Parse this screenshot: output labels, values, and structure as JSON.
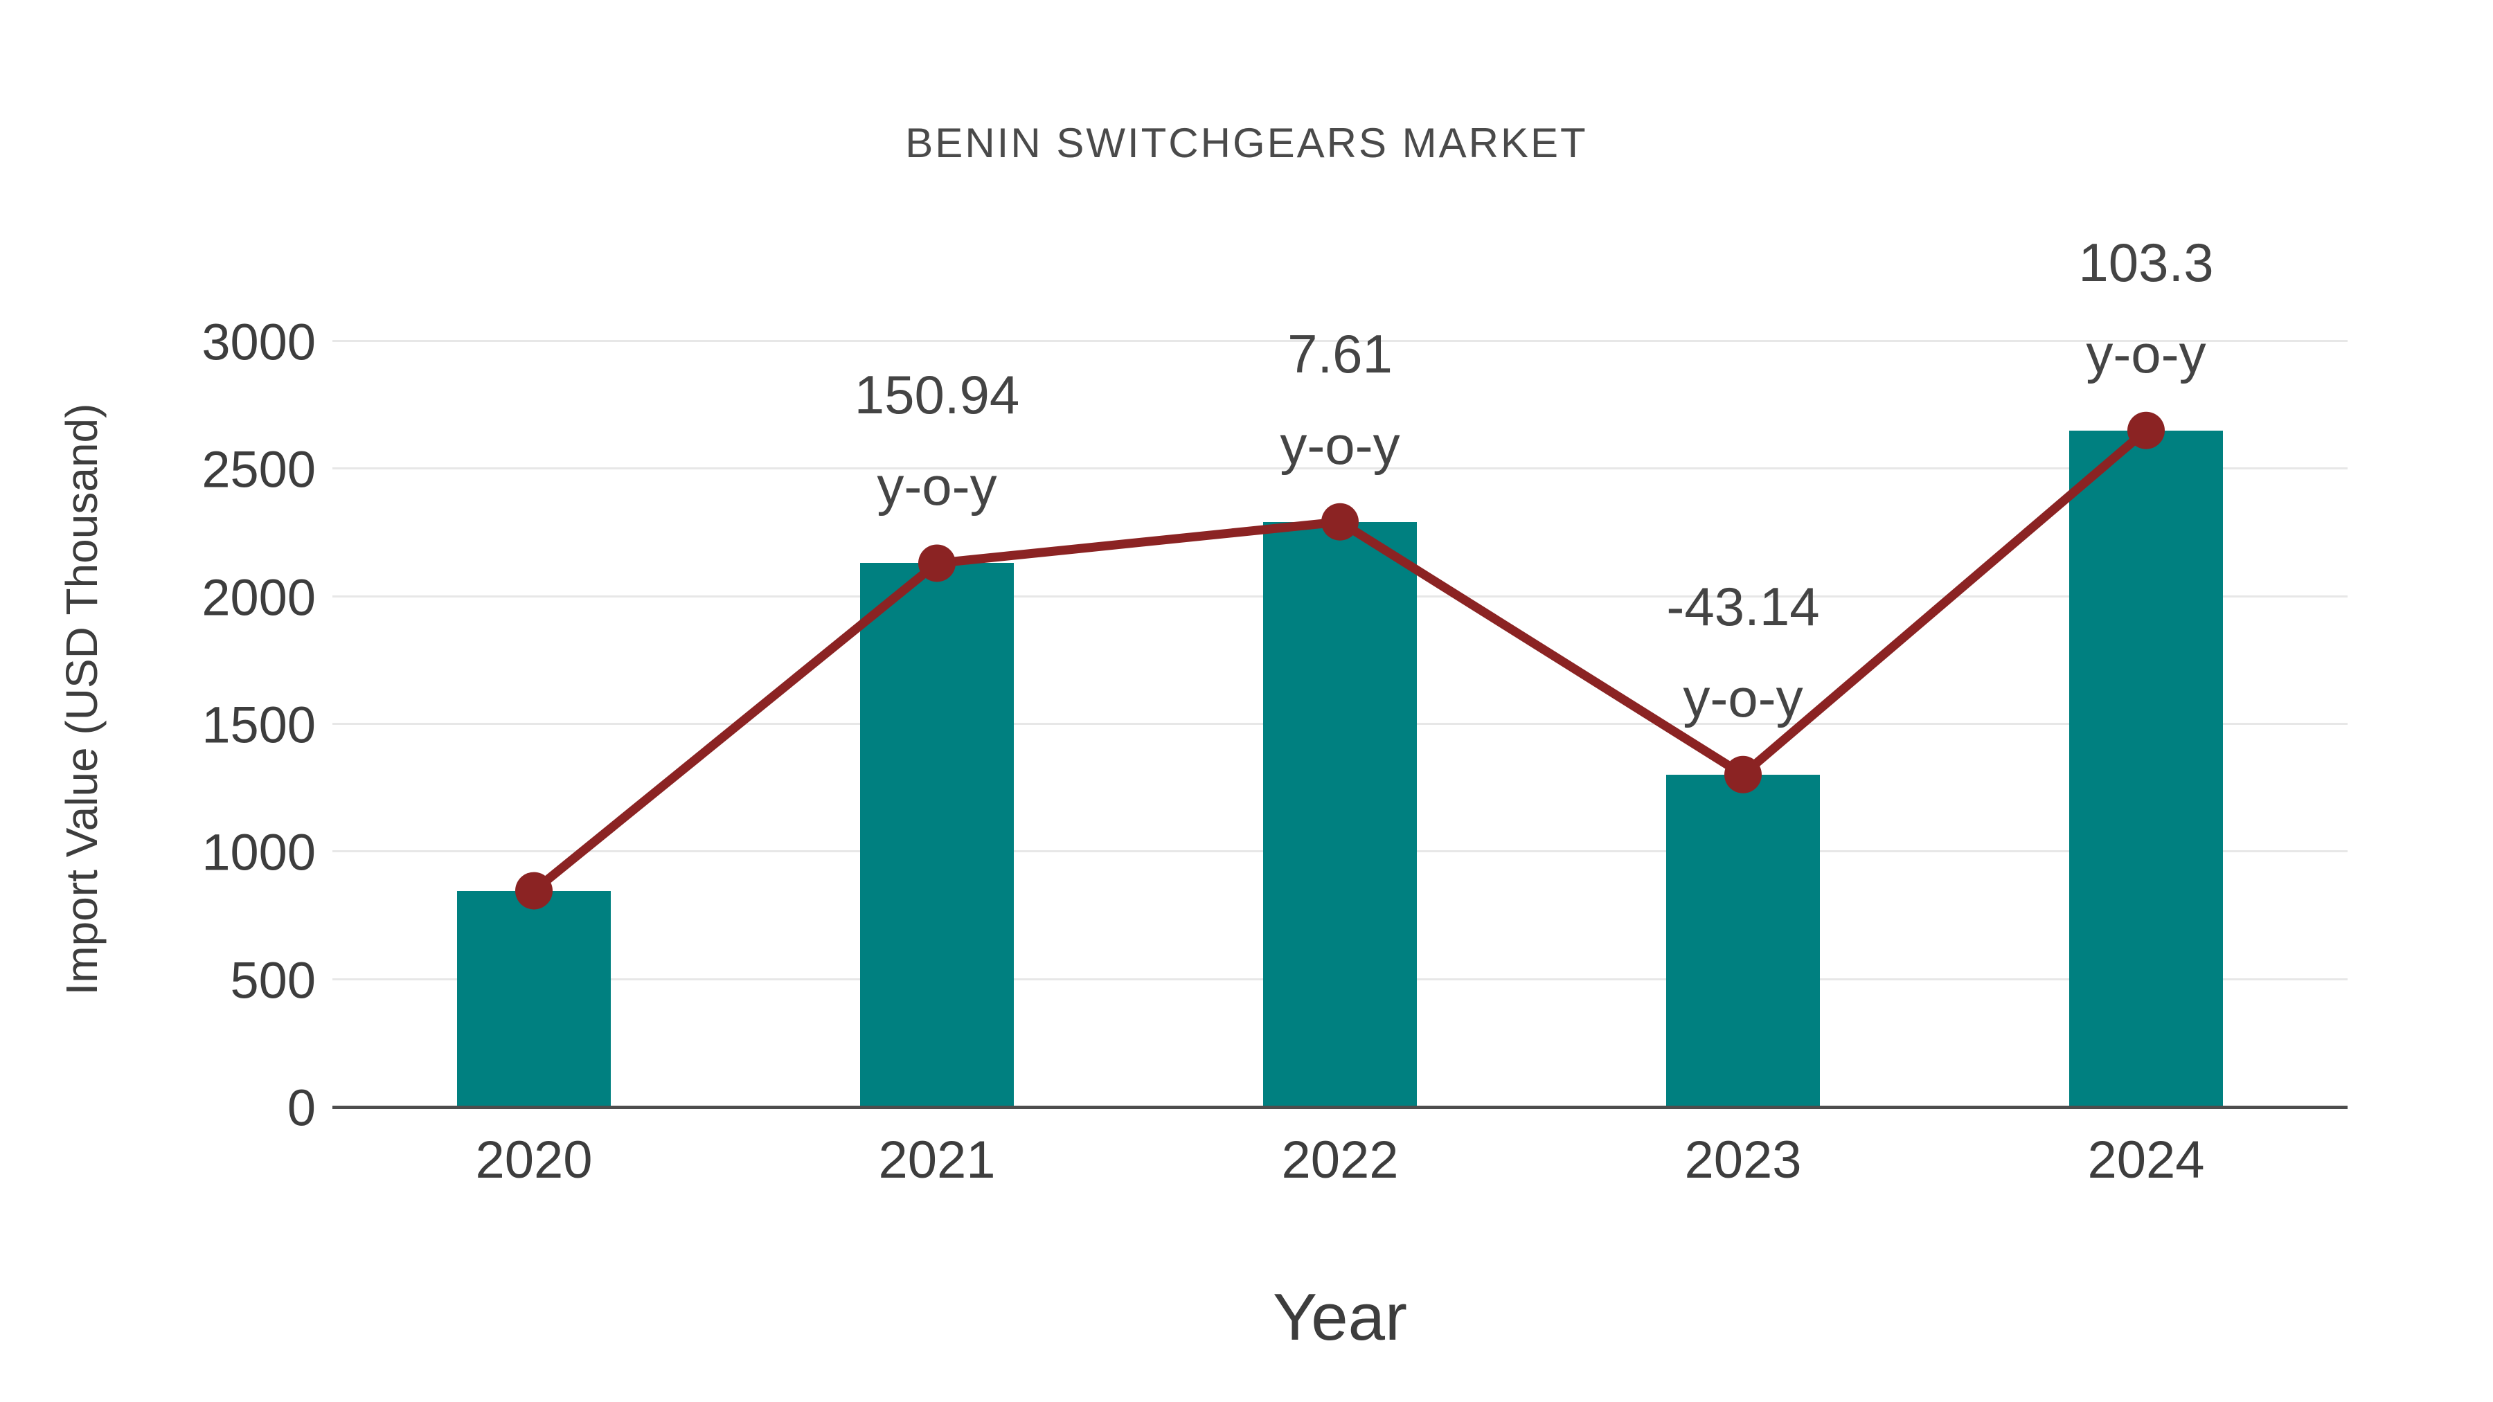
{
  "chart_data": {
    "type": "bar",
    "title": "BENIN SWITCHGEARS MARKET",
    "xlabel": "Year",
    "ylabel": "Import Value (USD Thousand)",
    "categories": [
      "2020",
      "2021",
      "2022",
      "2023",
      "2024"
    ],
    "series": [
      {
        "name": "Import Value bars",
        "type": "bar",
        "color": "#008080",
        "values": [
          850,
          2133,
          2295,
          1305,
          2653
        ]
      },
      {
        "name": "Import Value trend line",
        "type": "line",
        "color": "#8B2323",
        "values": [
          850,
          2133,
          2295,
          1305,
          2653
        ]
      }
    ],
    "point_annotations": [
      {
        "category": "2021",
        "line1": "150.94",
        "line2": "y-o-y"
      },
      {
        "category": "2022",
        "line1": "7.61",
        "line2": "y-o-y"
      },
      {
        "category": "2023",
        "line1": "-43.14",
        "line2": "y-o-y"
      },
      {
        "category": "2024",
        "line1": "103.3",
        "line2": "y-o-y"
      }
    ],
    "yticks": [
      0,
      500,
      1000,
      1500,
      2000,
      2500,
      3000
    ],
    "ylim": [
      0,
      3200
    ],
    "grid": true,
    "legend_position": "none",
    "colors": {
      "bar": "#008080",
      "line": "#8B2323",
      "gridline": "#e7e7e7",
      "axis": "#4d4d4d",
      "text": "#3d3d3d"
    }
  }
}
